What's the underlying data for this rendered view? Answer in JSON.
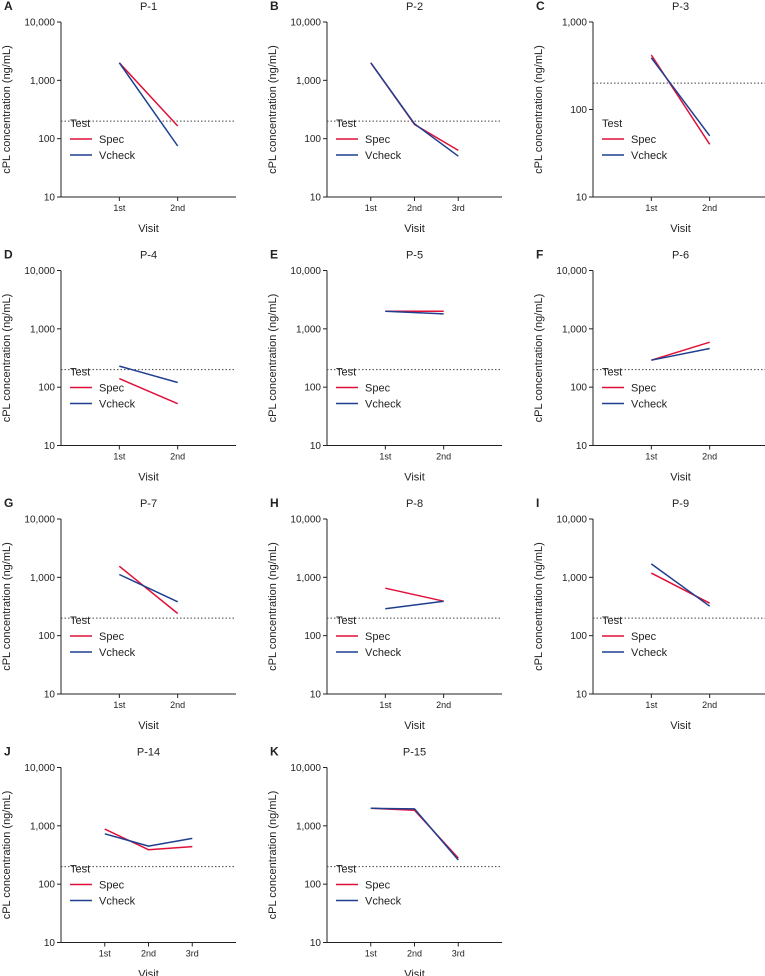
{
  "figure": {
    "y_axis_label": "cPL concentration (ng/mL)",
    "x_axis_label": "Visit",
    "y_ticks": [
      "10",
      "100",
      "1,000",
      "10,000"
    ],
    "legend": {
      "title": "Test",
      "series": [
        "Spec",
        "Vcheck"
      ]
    },
    "colors": {
      "Spec": "#e0103a",
      "Vcheck": "#1f3f8f",
      "threshold": "#444444"
    }
  },
  "chart_data": [
    {
      "type": "line",
      "panel": "A",
      "title": "P-1",
      "categories": [
        "1st",
        "2nd"
      ],
      "series": [
        {
          "name": "Spec",
          "values": [
            2000,
            165
          ]
        },
        {
          "name": "Vcheck",
          "values": [
            2000,
            75
          ]
        }
      ],
      "threshold": 200,
      "ylim": [
        10,
        10000
      ],
      "yscale": "log",
      "xlabel": "Visit",
      "ylabel": "cPL concentration (ng/mL)"
    },
    {
      "type": "line",
      "panel": "B",
      "title": "P-2",
      "categories": [
        "1st",
        "2nd",
        "3rd"
      ],
      "series": [
        {
          "name": "Spec",
          "values": [
            2000,
            175,
            63
          ]
        },
        {
          "name": "Vcheck",
          "values": [
            2000,
            180,
            50
          ]
        }
      ],
      "threshold": 200,
      "ylim": [
        10,
        10000
      ],
      "yscale": "log",
      "xlabel": "Visit",
      "ylabel": "cPL concentration (ng/mL)"
    },
    {
      "type": "line",
      "panel": "C",
      "title": "P-3",
      "categories": [
        "1st",
        "2nd"
      ],
      "series": [
        {
          "name": "Spec",
          "values": [
            420,
            40
          ]
        },
        {
          "name": "Vcheck",
          "values": [
            390,
            50
          ]
        }
      ],
      "threshold": 200,
      "ylim": [
        10,
        1000
      ],
      "yscale": "log",
      "xlabel": "Visit",
      "ylabel": "cPL concentration (ng/mL)"
    },
    {
      "type": "line",
      "panel": "D",
      "title": "P-4",
      "categories": [
        "1st",
        "2nd"
      ],
      "series": [
        {
          "name": "Spec",
          "values": [
            140,
            52
          ]
        },
        {
          "name": "Vcheck",
          "values": [
            230,
            120
          ]
        }
      ],
      "threshold": 200,
      "ylim": [
        10,
        10000
      ],
      "yscale": "log",
      "xlabel": "Visit",
      "ylabel": "cPL concentration (ng/mL)"
    },
    {
      "type": "line",
      "panel": "E",
      "title": "P-5",
      "categories": [
        "1st",
        "2nd"
      ],
      "series": [
        {
          "name": "Spec",
          "values": [
            2000,
            2000
          ]
        },
        {
          "name": "Vcheck",
          "values": [
            2000,
            1800
          ]
        }
      ],
      "threshold": 200,
      "ylim": [
        10,
        10000
      ],
      "yscale": "log",
      "xlabel": "Visit",
      "ylabel": "cPL concentration (ng/mL)"
    },
    {
      "type": "line",
      "panel": "F",
      "title": "P-6",
      "categories": [
        "1st",
        "2nd"
      ],
      "series": [
        {
          "name": "Spec",
          "values": [
            290,
            590
          ]
        },
        {
          "name": "Vcheck",
          "values": [
            290,
            460
          ]
        }
      ],
      "threshold": 200,
      "ylim": [
        10,
        10000
      ],
      "yscale": "log",
      "xlabel": "Visit",
      "ylabel": "cPL concentration (ng/mL)"
    },
    {
      "type": "line",
      "panel": "G",
      "title": "P-7",
      "categories": [
        "1st",
        "2nd"
      ],
      "series": [
        {
          "name": "Spec",
          "values": [
            1550,
            240
          ]
        },
        {
          "name": "Vcheck",
          "values": [
            1120,
            380
          ]
        }
      ],
      "threshold": 200,
      "ylim": [
        10,
        10000
      ],
      "yscale": "log",
      "xlabel": "Visit",
      "ylabel": "cPL concentration (ng/mL)"
    },
    {
      "type": "line",
      "panel": "H",
      "title": "P-8",
      "categories": [
        "1st",
        "2nd"
      ],
      "series": [
        {
          "name": "Spec",
          "values": [
            650,
            390
          ]
        },
        {
          "name": "Vcheck",
          "values": [
            290,
            390
          ]
        }
      ],
      "threshold": 200,
      "ylim": [
        10,
        10000
      ],
      "yscale": "log",
      "xlabel": "Visit",
      "ylabel": "cPL concentration (ng/mL)"
    },
    {
      "type": "line",
      "panel": "I",
      "title": "P-9",
      "categories": [
        "1st",
        "2nd"
      ],
      "series": [
        {
          "name": "Spec",
          "values": [
            1180,
            360
          ]
        },
        {
          "name": "Vcheck",
          "values": [
            1700,
            320
          ]
        }
      ],
      "threshold": 200,
      "ylim": [
        10,
        10000
      ],
      "yscale": "log",
      "xlabel": "Visit",
      "ylabel": "cPL concentration (ng/mL)"
    },
    {
      "type": "line",
      "panel": "J",
      "title": "P-14",
      "categories": [
        "1st",
        "2nd",
        "3rd"
      ],
      "series": [
        {
          "name": "Spec",
          "values": [
            880,
            390,
            440
          ]
        },
        {
          "name": "Vcheck",
          "values": [
            730,
            450,
            610
          ]
        }
      ],
      "threshold": 200,
      "ylim": [
        10,
        10000
      ],
      "yscale": "log",
      "xlabel": "Visit",
      "ylabel": "cPL concentration (ng/mL)"
    },
    {
      "type": "line",
      "panel": "K",
      "title": "P-15",
      "categories": [
        "1st",
        "2nd",
        "3rd"
      ],
      "series": [
        {
          "name": "Spec",
          "values": [
            2000,
            1850,
            280
          ]
        },
        {
          "name": "Vcheck",
          "values": [
            2000,
            1950,
            260
          ]
        }
      ],
      "threshold": 200,
      "ylim": [
        10,
        10000
      ],
      "yscale": "log",
      "xlabel": "Visit",
      "ylabel": "cPL concentration (ng/mL)"
    }
  ]
}
